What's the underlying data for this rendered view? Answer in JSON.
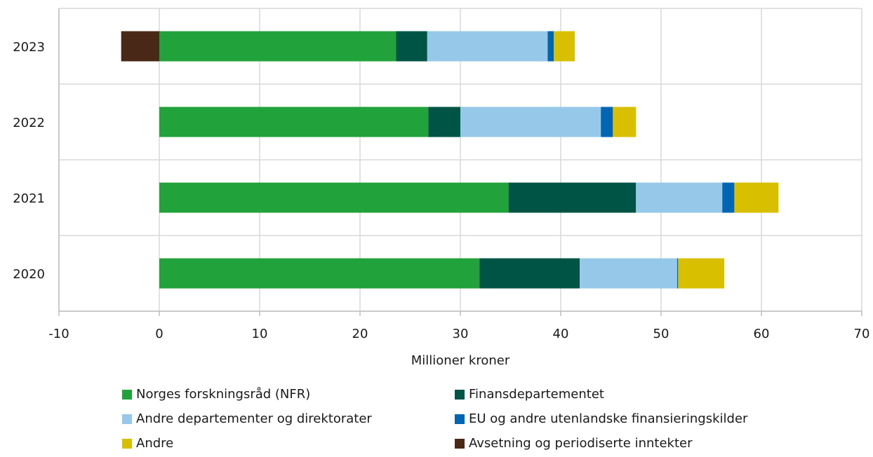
{
  "chart_data": {
    "type": "bar",
    "orientation": "horizontal",
    "stacked": true,
    "categories": [
      "2023",
      "2022",
      "2021",
      "2020"
    ],
    "series": [
      {
        "name": "Norges forskningsråd (NFR)",
        "color": "#22a23a",
        "values": [
          23.6,
          26.8,
          34.8,
          31.9
        ]
      },
      {
        "name": "Finansdepartementet",
        "color": "#005445",
        "values": [
          3.1,
          3.2,
          12.7,
          10.0
        ]
      },
      {
        "name": "Andre departementer og direktorater",
        "color": "#96c8ea",
        "values": [
          12.0,
          14.0,
          8.6,
          9.7
        ]
      },
      {
        "name": "EU og andre utenlandske finansieringskilder",
        "color": "#0066b3",
        "values": [
          0.6,
          1.2,
          1.2,
          0.1
        ]
      },
      {
        "name": "Andre",
        "color": "#d8bf00",
        "values": [
          2.1,
          2.3,
          4.4,
          4.6
        ]
      },
      {
        "name": "Avsetning og periodiserte inntekter",
        "color": "#4a2817",
        "values": [
          -3.8,
          0,
          0,
          0
        ]
      }
    ],
    "xlim": [
      -10,
      70
    ],
    "xticks": [
      "-10",
      "0",
      "10",
      "20",
      "30",
      "40",
      "50",
      "60",
      "70"
    ],
    "xlabel": "Millioner kroner",
    "ylabel": "",
    "title": "",
    "grid": true,
    "legend_position": "bottom"
  }
}
